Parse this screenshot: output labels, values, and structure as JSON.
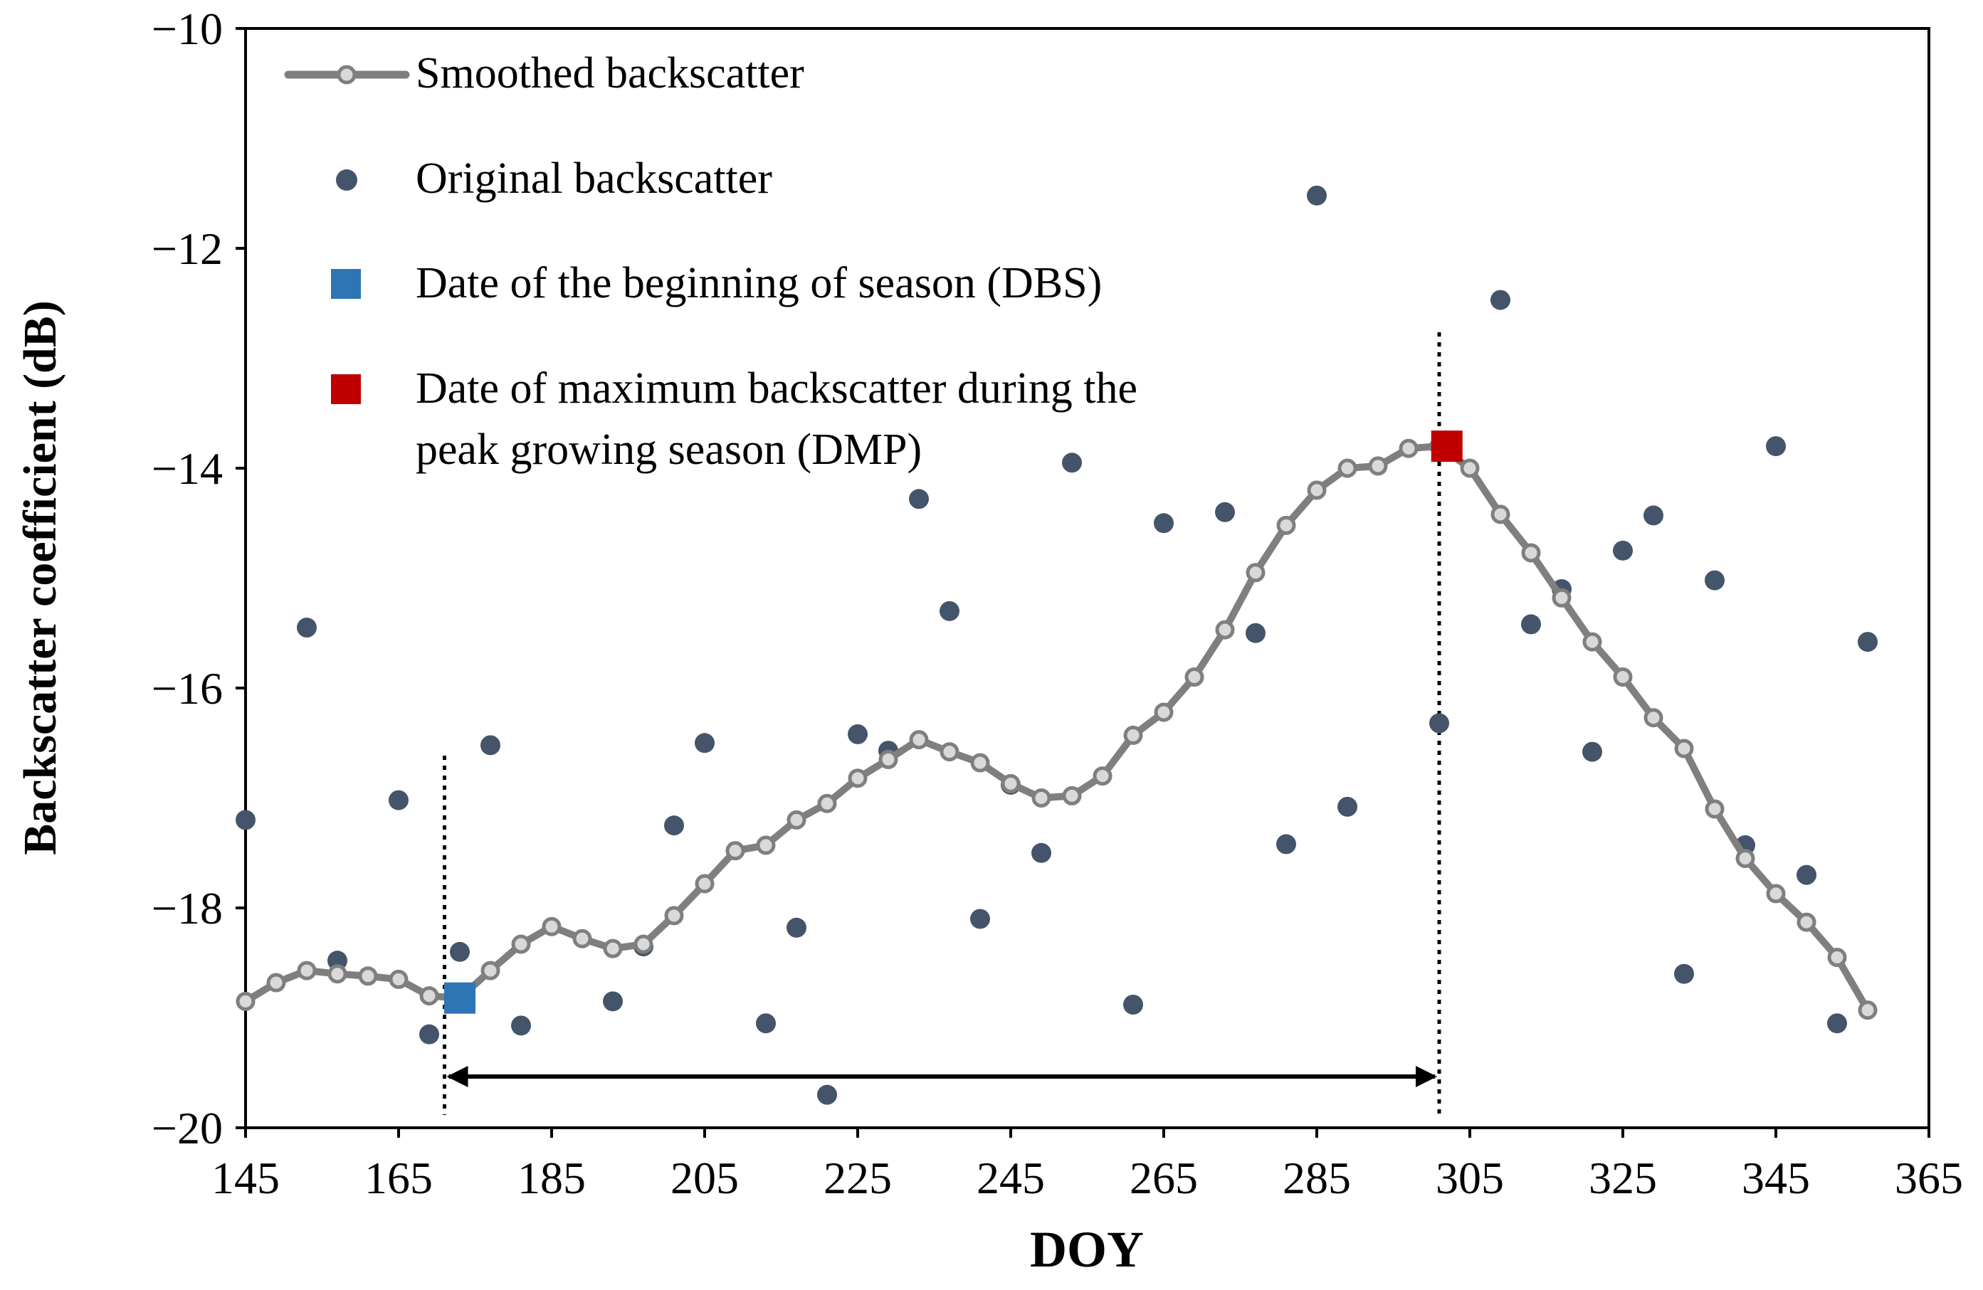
{
  "chart_data": {
    "type": "line",
    "xlabel": "DOY",
    "ylabel": "Backscatter coefficient (dB)",
    "xlim": [
      145,
      365
    ],
    "ylim": [
      -20,
      -10
    ],
    "xticks": [
      145,
      165,
      185,
      205,
      225,
      245,
      265,
      285,
      305,
      325,
      345,
      365
    ],
    "yticks": [
      -10,
      -12,
      -14,
      -16,
      -18,
      -20
    ],
    "ytick_labels": [
      "−10",
      "−12",
      "−14",
      "−16",
      "−18",
      "−20"
    ],
    "grid": false,
    "legend": [
      {
        "key": "smoothed",
        "label": "Smoothed backscatter"
      },
      {
        "key": "original",
        "label": "Original backscatter"
      },
      {
        "key": "dbs",
        "label": "Date of the beginning of season (DBS)"
      },
      {
        "key": "dmp",
        "label_line1": "Date of maximum backscatter during the",
        "label_line2": "peak growing season (DMP)"
      }
    ],
    "series": [
      {
        "name": "Smoothed backscatter",
        "color": "#7f7f7f",
        "x": [
          145,
          149,
          153,
          157,
          161,
          165,
          169,
          173,
          177,
          181,
          185,
          189,
          193,
          197,
          201,
          205,
          209,
          213,
          217,
          221,
          225,
          229,
          233,
          237,
          241,
          245,
          249,
          253,
          257,
          261,
          265,
          269,
          273,
          277,
          281,
          285,
          289,
          293,
          297,
          301,
          305,
          309,
          313,
          317,
          321,
          325,
          329,
          333,
          337,
          341,
          345,
          349,
          353,
          357
        ],
        "y": [
          -18.85,
          -18.68,
          -18.57,
          -18.6,
          -18.62,
          -18.65,
          -18.8,
          -18.82,
          -18.57,
          -18.33,
          -18.17,
          -18.28,
          -18.37,
          -18.33,
          -18.07,
          -17.78,
          -17.48,
          -17.43,
          -17.2,
          -17.05,
          -16.82,
          -16.65,
          -16.47,
          -16.58,
          -16.68,
          -16.87,
          -17.0,
          -16.98,
          -16.8,
          -16.43,
          -16.22,
          -15.9,
          -15.47,
          -14.95,
          -14.52,
          -14.2,
          -14.0,
          -13.98,
          -13.82,
          -13.8,
          -14.0,
          -14.42,
          -14.77,
          -15.18,
          -15.58,
          -15.9,
          -16.27,
          -16.55,
          -17.1,
          -17.55,
          -17.87,
          -18.13,
          -18.45,
          -18.93
        ]
      },
      {
        "name": "Original backscatter",
        "color": "#44546a",
        "x": [
          145,
          153,
          157,
          165,
          169,
          173,
          177,
          181,
          193,
          197,
          201,
          205,
          213,
          217,
          221,
          225,
          229,
          233,
          237,
          241,
          245,
          249,
          253,
          261,
          265,
          273,
          277,
          281,
          285,
          289,
          301,
          309,
          313,
          317,
          321,
          325,
          329,
          333,
          337,
          341,
          345,
          349,
          353,
          357
        ],
        "y": [
          -17.2,
          -15.45,
          -18.48,
          -17.02,
          -19.15,
          -18.4,
          -16.52,
          -19.07,
          -18.85,
          -18.35,
          -17.25,
          -16.5,
          -19.05,
          -18.18,
          -19.7,
          -16.42,
          -16.57,
          -14.28,
          -15.3,
          -18.1,
          -16.88,
          -17.5,
          -13.95,
          -18.88,
          -14.5,
          -14.4,
          -15.5,
          -17.42,
          -11.52,
          -17.08,
          -16.32,
          -12.47,
          -15.42,
          -15.1,
          -16.58,
          -14.75,
          -14.43,
          -18.6,
          -15.02,
          -17.43,
          -13.8,
          -17.7,
          -19.05,
          -15.58
        ]
      }
    ],
    "markers": [
      {
        "name": "DBS",
        "x": 173,
        "y": -18.82,
        "color": "#2e75b6"
      },
      {
        "name": "DMP",
        "x": 302,
        "y": -13.8,
        "color": "#c00000"
      }
    ],
    "vlines": [
      171,
      301
    ],
    "arrow": {
      "from": 171,
      "to": 301,
      "y": -19.7
    }
  }
}
